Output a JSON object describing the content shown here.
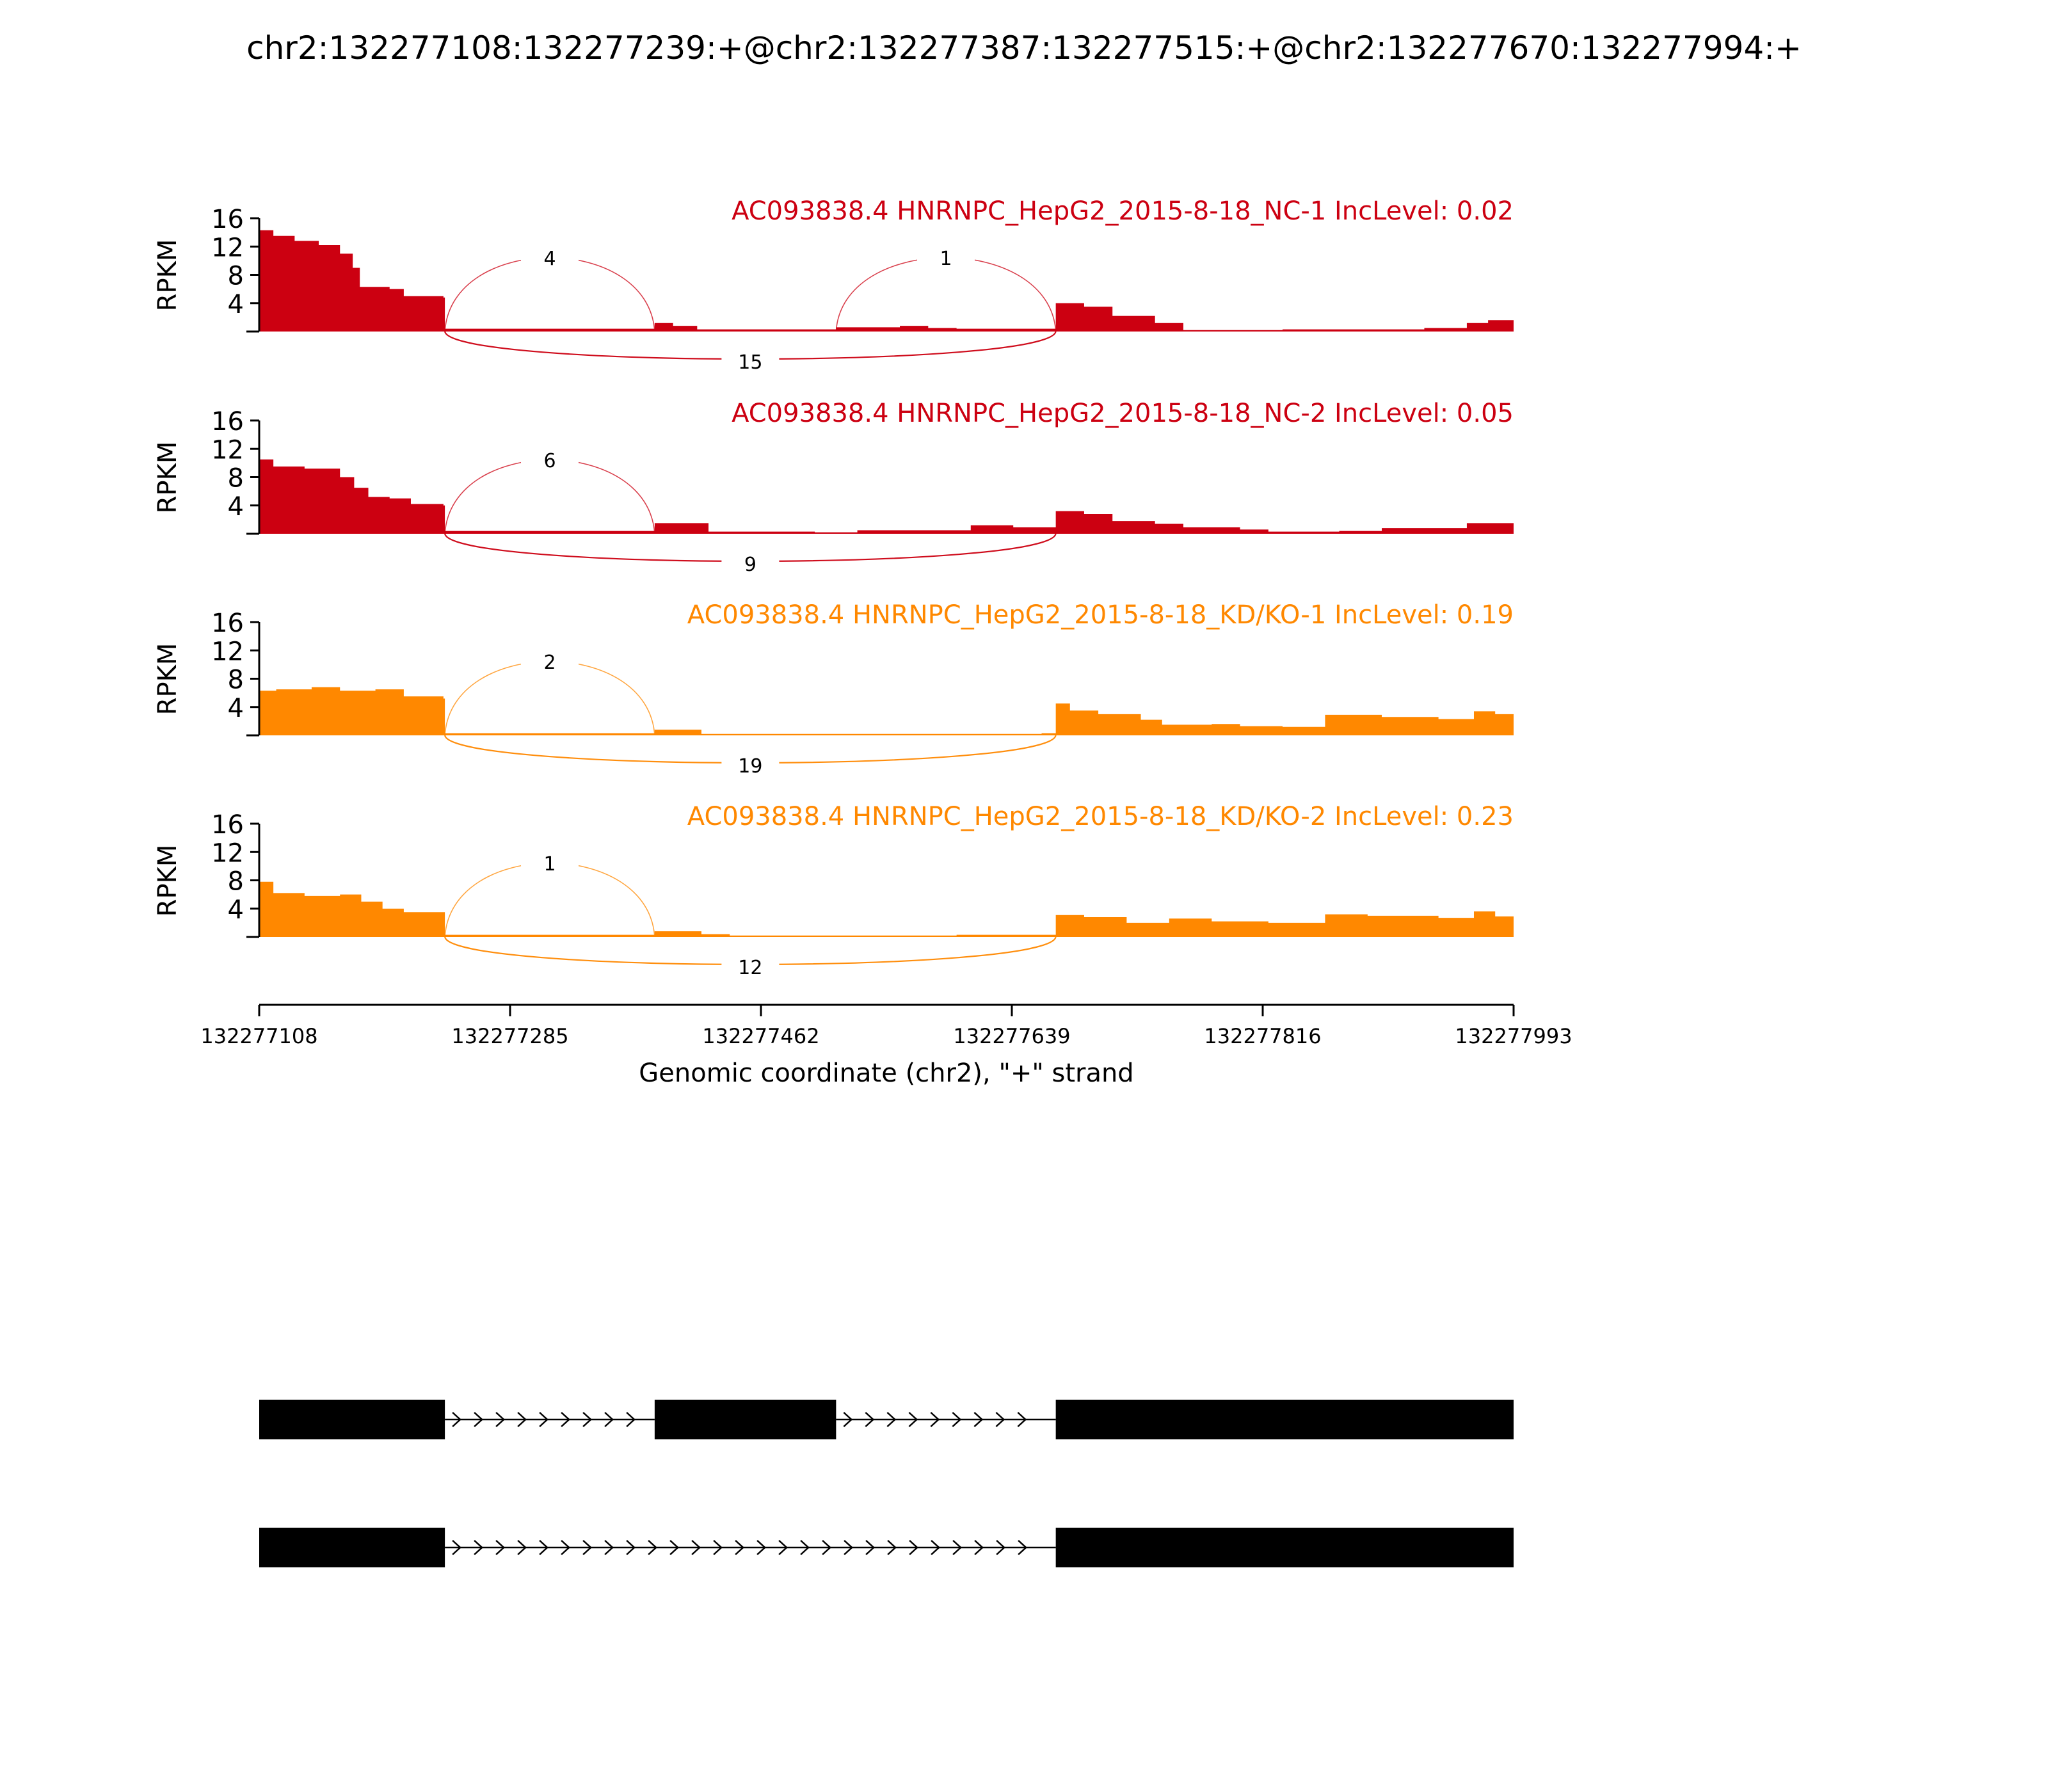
{
  "chart_data": {
    "type": "area",
    "title": "chr2:132277108:132277239:+@chr2:132277387:132277515:+@chr2:132277670:132277994:+",
    "xlabel": "Genomic coordinate (chr2), \"+\" strand",
    "ylabel": "RPKM",
    "ylim": [
      0,
      16
    ],
    "yticks": [
      "4",
      "8",
      "12",
      "16"
    ],
    "xlim": [
      132277108,
      132277993
    ],
    "xticks": [
      "132277108",
      "132277285",
      "132277462",
      "132277639",
      "132277816",
      "132277993"
    ],
    "colors": {
      "NC": "#cc0011",
      "KD": "#ff8800",
      "exon": "#000000"
    },
    "tracks": [
      {
        "label": "AC093838.4 HNRNPC_HepG2_2015-8-18_NC-1 IncLevel: 0.02",
        "color": "#cc0011",
        "coverage": [
          [
            132277108,
            14.3
          ],
          [
            132277118,
            13.5
          ],
          [
            132277133,
            12.8
          ],
          [
            132277150,
            12.2
          ],
          [
            132277165,
            11.0
          ],
          [
            132277174,
            9.0
          ],
          [
            132277179,
            6.3
          ],
          [
            132277200,
            6.0
          ],
          [
            132277210,
            5.0
          ],
          [
            132277238,
            4.8
          ],
          [
            132277239,
            0.4
          ],
          [
            132277260,
            0.4
          ],
          [
            132277357,
            0.4
          ],
          [
            132277387,
            1.2
          ],
          [
            132277400,
            0.8
          ],
          [
            132277417,
            0.3
          ],
          [
            132277490,
            0.3
          ],
          [
            132277515,
            0.6
          ],
          [
            132277560,
            0.8
          ],
          [
            132277580,
            0.5
          ],
          [
            132277600,
            0.4
          ],
          [
            132277660,
            0.4
          ],
          [
            132277670,
            4.0
          ],
          [
            132277690,
            3.5
          ],
          [
            132277710,
            2.2
          ],
          [
            132277740,
            1.2
          ],
          [
            132277760,
            0.2
          ],
          [
            132277810,
            0.2
          ],
          [
            132277830,
            0.3
          ],
          [
            132277930,
            0.5
          ],
          [
            132277960,
            1.2
          ],
          [
            132277975,
            1.6
          ],
          [
            132277993,
            1.8
          ]
        ],
        "junctions": [
          {
            "from": 132277239,
            "to": 132277387,
            "count": "4",
            "side": "above"
          },
          {
            "from": 132277515,
            "to": 132277670,
            "count": "1",
            "side": "above"
          },
          {
            "from": 132277239,
            "to": 132277670,
            "count": "15",
            "side": "below"
          }
        ]
      },
      {
        "label": "AC093838.4 HNRNPC_HepG2_2015-8-18_NC-2 IncLevel: 0.05",
        "color": "#cc0011",
        "coverage": [
          [
            132277108,
            10.5
          ],
          [
            132277118,
            9.5
          ],
          [
            132277140,
            9.2
          ],
          [
            132277165,
            8.0
          ],
          [
            132277175,
            6.5
          ],
          [
            132277185,
            5.2
          ],
          [
            132277200,
            5.0
          ],
          [
            132277215,
            4.2
          ],
          [
            132277238,
            4.0
          ],
          [
            132277239,
            0.4
          ],
          [
            132277387,
            1.5
          ],
          [
            132277425,
            0.3
          ],
          [
            132277500,
            0.2
          ],
          [
            132277530,
            0.5
          ],
          [
            132277610,
            1.2
          ],
          [
            132277640,
            0.9
          ],
          [
            132277670,
            3.2
          ],
          [
            132277690,
            2.8
          ],
          [
            132277710,
            1.8
          ],
          [
            132277740,
            1.4
          ],
          [
            132277760,
            0.9
          ],
          [
            132277800,
            0.6
          ],
          [
            132277820,
            0.3
          ],
          [
            132277870,
            0.4
          ],
          [
            132277900,
            0.8
          ],
          [
            132277960,
            1.5
          ],
          [
            132277993,
            1.6
          ]
        ],
        "junctions": [
          {
            "from": 132277239,
            "to": 132277387,
            "count": "6",
            "side": "above"
          },
          {
            "from": 132277239,
            "to": 132277670,
            "count": "9",
            "side": "below"
          }
        ]
      },
      {
        "label": "AC093838.4 HNRNPC_HepG2_2015-8-18_KD/KO-1 IncLevel: 0.19",
        "color": "#ff8800",
        "coverage": [
          [
            132277108,
            6.3
          ],
          [
            132277120,
            6.5
          ],
          [
            132277145,
            6.8
          ],
          [
            132277165,
            6.3
          ],
          [
            132277190,
            6.5
          ],
          [
            132277210,
            5.5
          ],
          [
            132277238,
            5.2
          ],
          [
            132277239,
            0.3
          ],
          [
            132277387,
            0.8
          ],
          [
            132277420,
            0.2
          ],
          [
            132277660,
            0.3
          ],
          [
            132277670,
            4.5
          ],
          [
            132277680,
            3.5
          ],
          [
            132277700,
            3.0
          ],
          [
            132277730,
            2.2
          ],
          [
            132277745,
            1.5
          ],
          [
            132277780,
            1.6
          ],
          [
            132277800,
            1.3
          ],
          [
            132277830,
            1.2
          ],
          [
            132277860,
            2.9
          ],
          [
            132277900,
            2.6
          ],
          [
            132277940,
            2.3
          ],
          [
            132277965,
            3.4
          ],
          [
            132277980,
            3.0
          ],
          [
            132277993,
            2.5
          ]
        ],
        "junctions": [
          {
            "from": 132277239,
            "to": 132277387,
            "count": "2",
            "side": "above"
          },
          {
            "from": 132277239,
            "to": 132277670,
            "count": "19",
            "side": "below"
          }
        ]
      },
      {
        "label": "AC093838.4 HNRNPC_HepG2_2015-8-18_KD/KO-2 IncLevel: 0.23",
        "color": "#ff8800",
        "coverage": [
          [
            132277108,
            7.8
          ],
          [
            132277118,
            6.2
          ],
          [
            132277140,
            5.8
          ],
          [
            132277165,
            6.0
          ],
          [
            132277180,
            5.0
          ],
          [
            132277195,
            4.0
          ],
          [
            132277210,
            3.5
          ],
          [
            132277238,
            3.5
          ],
          [
            132277239,
            0.3
          ],
          [
            132277387,
            0.8
          ],
          [
            132277420,
            0.4
          ],
          [
            132277440,
            0.2
          ],
          [
            132277600,
            0.3
          ],
          [
            132277670,
            3.1
          ],
          [
            132277690,
            2.8
          ],
          [
            132277720,
            2.0
          ],
          [
            132277750,
            2.6
          ],
          [
            132277780,
            2.2
          ],
          [
            132277820,
            2.0
          ],
          [
            132277860,
            3.2
          ],
          [
            132277890,
            3.0
          ],
          [
            132277940,
            2.7
          ],
          [
            132277965,
            3.6
          ],
          [
            132277980,
            2.9
          ],
          [
            132277993,
            2.3
          ]
        ],
        "junctions": [
          {
            "from": 132277239,
            "to": 132277387,
            "count": "1",
            "side": "above"
          },
          {
            "from": 132277239,
            "to": 132277670,
            "count": "12",
            "side": "below"
          }
        ]
      }
    ],
    "isoforms": [
      {
        "exons": [
          [
            132277108,
            132277239
          ],
          [
            132277387,
            132277515
          ],
          [
            132277670,
            132277993
          ]
        ]
      },
      {
        "exons": [
          [
            132277108,
            132277239
          ],
          [
            132277670,
            132277993
          ]
        ]
      }
    ]
  }
}
